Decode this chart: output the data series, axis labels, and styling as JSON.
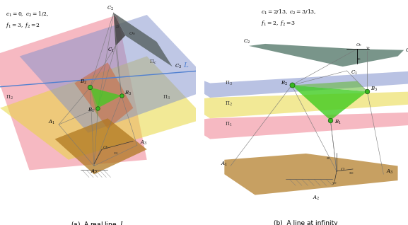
{
  "fig_width": 5.77,
  "fig_height": 3.18,
  "bg_color": "#ffffff",
  "label_a": "(a)  A real line  $L$",
  "label_b": "(b)  A line at infinity",
  "annotation_a": "$c_1=0,\\ c_2=1/2,$\n$f_1=3,\\ f_2=2$",
  "annotation_b": "$c_1=2/13,\\ c_2=3/13,$\n$f_1=2,\\ f_2=3$",
  "colors": {
    "pink": "#f08090",
    "blue": "#8090cc",
    "yellow": "#e8d840",
    "brown": "#b07820",
    "green_bright": "#40cc20",
    "green_mid": "#60b830",
    "green_dark": "#30a010",
    "teal": "#406858",
    "gray_dark": "#556060",
    "orange": "#cc6030",
    "line_L": "#5080d0"
  }
}
